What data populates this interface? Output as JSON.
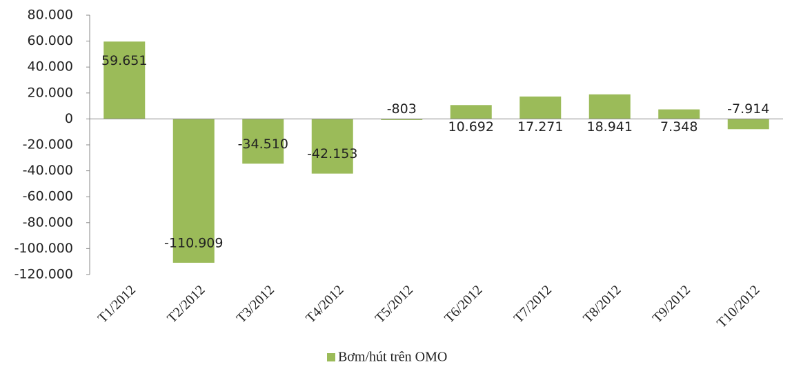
{
  "chart_data": {
    "type": "bar",
    "categories": [
      "T1/2012",
      "T2/2012",
      "T3/2012",
      "T4/2012",
      "T5/2012",
      "T6/2012",
      "T7/2012",
      "T8/2012",
      "T9/2012",
      "T10/2012"
    ],
    "series": [
      {
        "name": "Bơm/hút trên OMO",
        "color": "#9bbb59",
        "values": [
          59651,
          -110909,
          -34510,
          -42153,
          -803,
          10692,
          17271,
          18941,
          7348,
          -7914
        ],
        "value_labels": [
          "59.651",
          "-110.909",
          "-34.510",
          "-42.153",
          "-803",
          "10.692",
          "17.271",
          "18.941",
          "7.348",
          "-7.914"
        ]
      }
    ],
    "ylim": [
      -120000,
      80000
    ],
    "yticks": [
      {
        "value": 80000,
        "label": "80.000"
      },
      {
        "value": 60000,
        "label": "60.000"
      },
      {
        "value": 40000,
        "label": "40.000"
      },
      {
        "value": 20000,
        "label": "20.000"
      },
      0,
      {
        "value": -20000,
        "label": "-20.000"
      },
      {
        "value": -40000,
        "label": "-40.000"
      },
      {
        "value": -60000,
        "label": "-60.000"
      },
      {
        "value": -80000,
        "label": "-80.000"
      },
      {
        "value": -100000,
        "label": "-100.000"
      },
      {
        "value": -120000,
        "label": "-120.000"
      }
    ],
    "legend": "bottom"
  }
}
